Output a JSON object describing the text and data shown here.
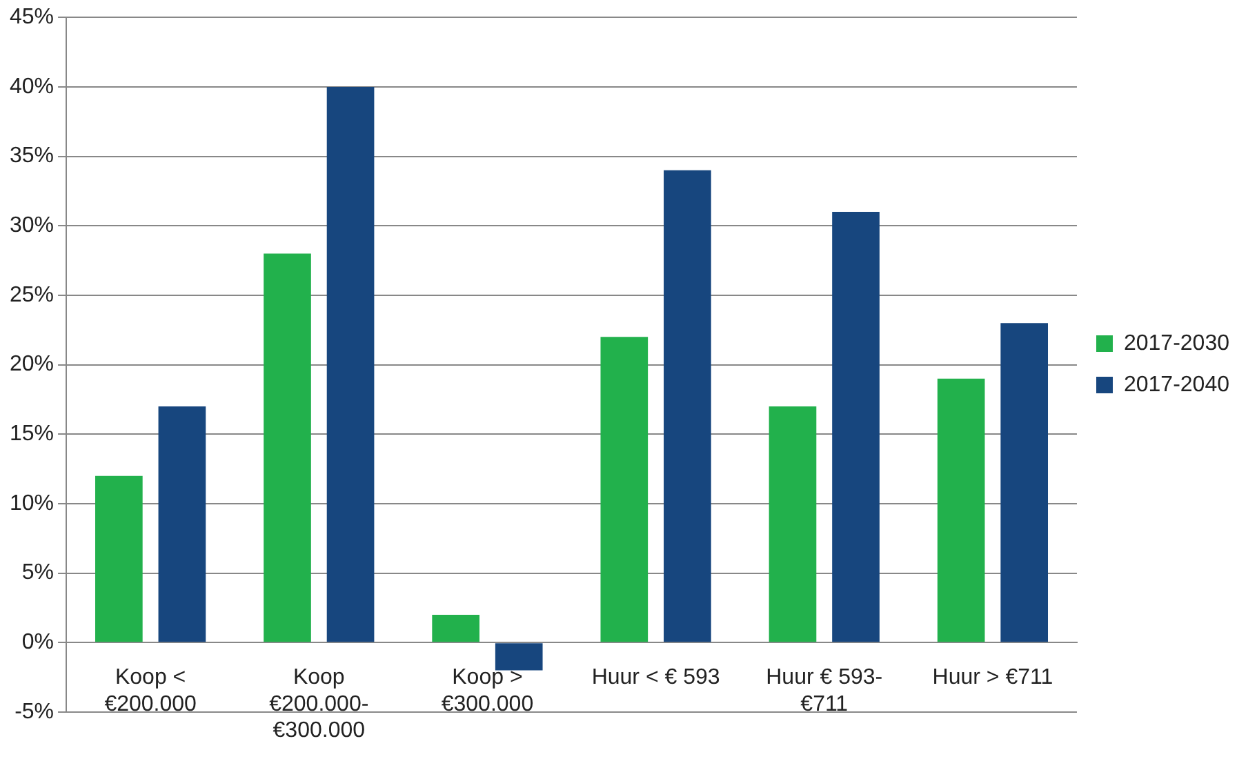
{
  "chart_data": {
    "type": "bar",
    "categories": [
      "Koop <\n€200.000",
      "Koop\n€200.000-\n€300.000",
      "Koop >\n€300.000",
      "Huur < € 593",
      "Huur € 593-\n€711",
      "Huur > €711"
    ],
    "series": [
      {
        "name": "2017-2030",
        "color": "#22b14c",
        "values": [
          12,
          28,
          2,
          22,
          17,
          19
        ]
      },
      {
        "name": "2017-2040",
        "color": "#17467e",
        "values": [
          17,
          40,
          -2,
          34,
          31,
          23
        ]
      }
    ],
    "ylim": [
      -5,
      45
    ],
    "yticks": [
      {
        "value": -5,
        "label": "-5%"
      },
      {
        "value": 0,
        "label": "0%"
      },
      {
        "value": 5,
        "label": "5%"
      },
      {
        "value": 10,
        "label": "10%"
      },
      {
        "value": 15,
        "label": "15%"
      },
      {
        "value": 20,
        "label": "20%"
      },
      {
        "value": 25,
        "label": "25%"
      },
      {
        "value": 30,
        "label": "30%"
      },
      {
        "value": 35,
        "label": "35%"
      },
      {
        "value": 40,
        "label": "40%"
      },
      {
        "value": 45,
        "label": "45%"
      }
    ],
    "grid": "y",
    "legend": "right"
  }
}
